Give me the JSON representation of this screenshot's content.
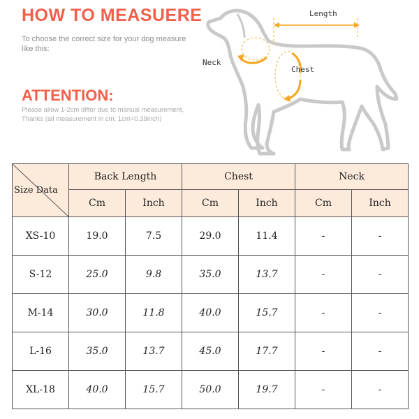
{
  "header": {
    "title": "HOW TO MEASUERE",
    "intro": "To choose the correct size for your dog measure like this:",
    "attention_title": "ATTENTION:",
    "attention_line1": "Please allow 1-2cm differ due to manual measurement,",
    "attention_line2": "Thanks (all measurement in cm, 1cm=0.39inch)"
  },
  "diagram": {
    "length_label": "Length",
    "neck_label": "Neck",
    "chest_label": "Chest",
    "accent_color": "#f5a623",
    "guide_color": "#f2c76a"
  },
  "table": {
    "corner_label": "Size Data",
    "groups": [
      "Back Length",
      "Chest",
      "Neck"
    ],
    "units": [
      "Cm",
      "Inch",
      "Cm",
      "Inch",
      "Cm",
      "Inch"
    ],
    "header_bg": "#fcebdb",
    "rows": [
      {
        "size": "XS-10",
        "back_cm": "19.0",
        "back_in": "7.5",
        "chest_cm": "29.0",
        "chest_in": "11.4",
        "neck_cm": "-",
        "neck_in": "-"
      },
      {
        "size": "S-12",
        "back_cm": "25.0",
        "back_in": "9.8",
        "chest_cm": "35.0",
        "chest_in": "13.7",
        "neck_cm": "-",
        "neck_in": "-"
      },
      {
        "size": "M-14",
        "back_cm": "30.0",
        "back_in": "11.8",
        "chest_cm": "40.0",
        "chest_in": "15.7",
        "neck_cm": "-",
        "neck_in": "-"
      },
      {
        "size": "L-16",
        "back_cm": "35.0",
        "back_in": "13.7",
        "chest_cm": "45.0",
        "chest_in": "17.7",
        "neck_cm": "-",
        "neck_in": "-"
      },
      {
        "size": "XL-18",
        "back_cm": "40.0",
        "back_in": "15.7",
        "chest_cm": "50.0",
        "chest_in": "19.7",
        "neck_cm": "-",
        "neck_in": "-"
      }
    ]
  }
}
